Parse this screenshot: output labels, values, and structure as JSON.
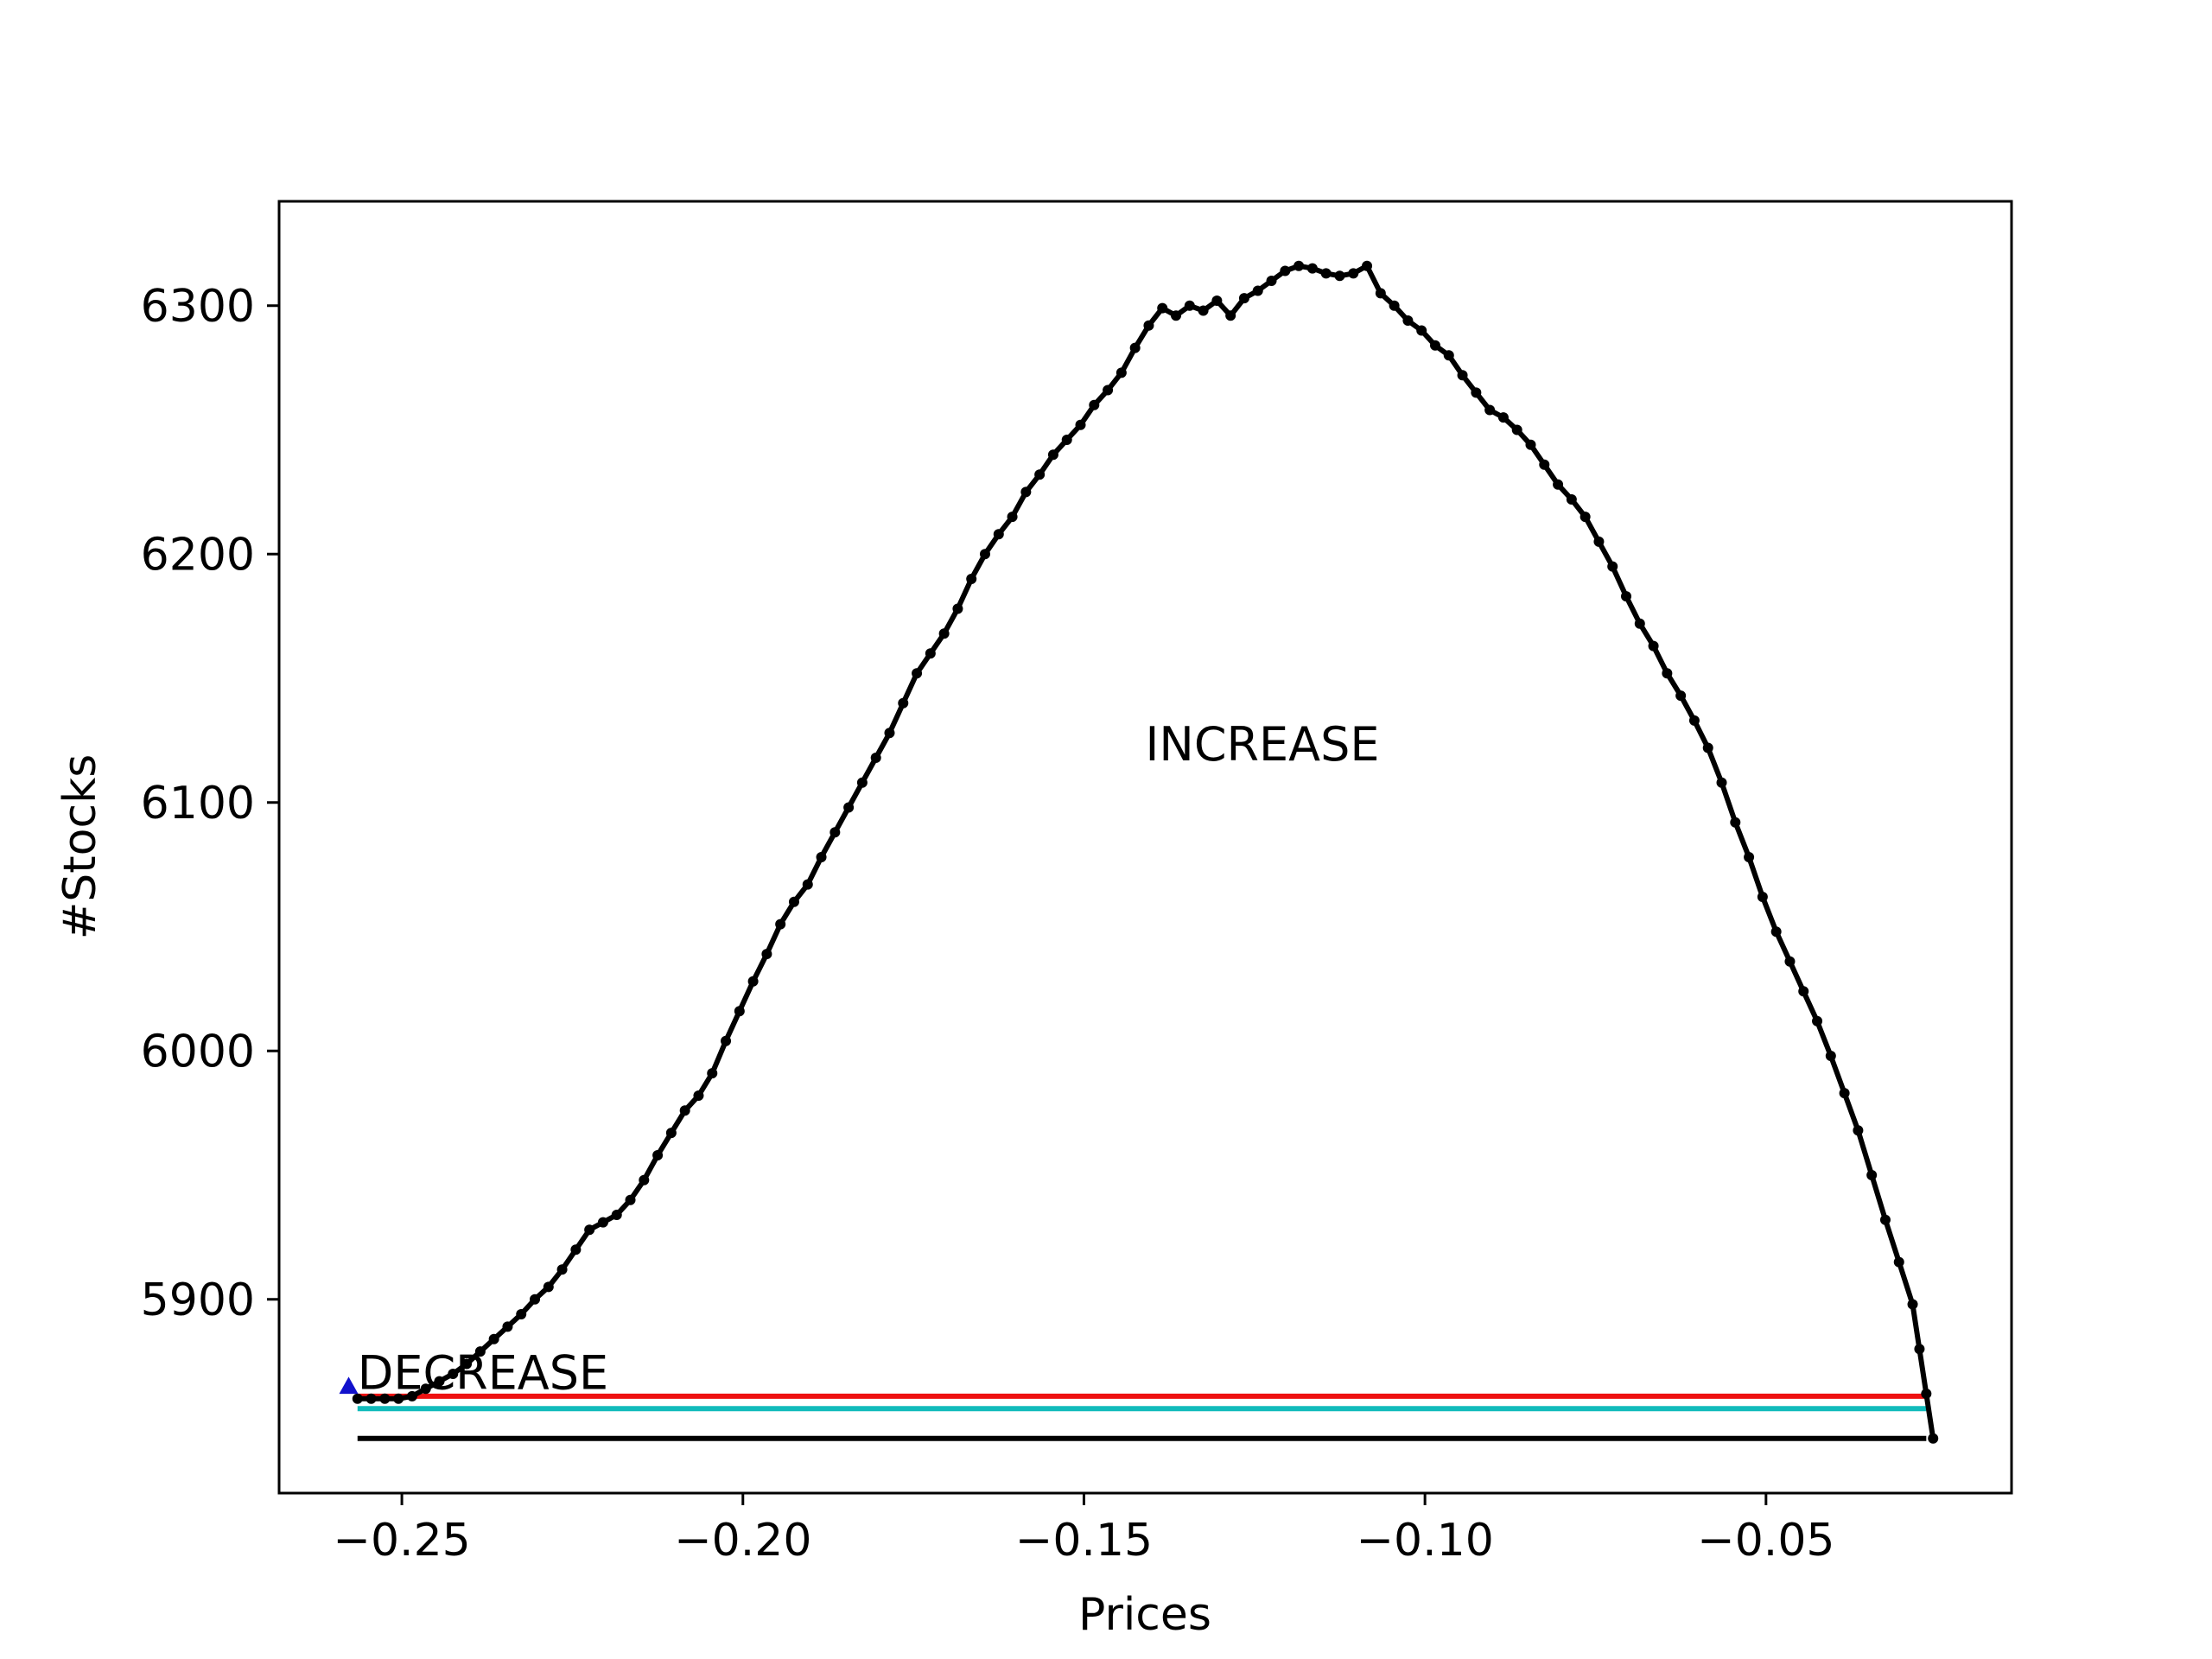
{
  "chart_data": {
    "type": "line",
    "title": "",
    "xlabel": "Prices",
    "ylabel": "#Stocks",
    "xlim": [
      -0.268,
      -0.014
    ],
    "ylim": [
      5822,
      6342
    ],
    "grid": false,
    "legend": "none",
    "xticks": [
      -0.25,
      -0.2,
      -0.15,
      -0.1,
      -0.05
    ],
    "xtick_labels": [
      "−0.25",
      "−0.20",
      "−0.15",
      "−0.10",
      "−0.05"
    ],
    "yticks": [
      5900,
      6000,
      6100,
      6200,
      6300
    ],
    "ytick_labels": [
      "5900",
      "6000",
      "6100",
      "6200",
      "6300"
    ],
    "annotations": [
      {
        "text": "INCREASE",
        "x": -0.141,
        "y": 6117
      },
      {
        "text": "DECREASE",
        "x": -0.2565,
        "y": 5864
      }
    ],
    "reference_lines": [
      {
        "name": "red",
        "y": 5861,
        "x_start": -0.2565,
        "x_end": -0.0265,
        "color": "#ee1111"
      },
      {
        "name": "cyan",
        "y": 5856,
        "x_start": -0.2565,
        "x_end": -0.0265,
        "color": "#11bbbb"
      },
      {
        "name": "black",
        "y": 5844,
        "x_start": -0.2565,
        "x_end": -0.0265,
        "color": "#000000"
      }
    ],
    "markers": [
      {
        "name": "start-triangle",
        "x": -0.2578,
        "y": 5865,
        "color": "#1111cc"
      }
    ],
    "series": [
      {
        "color": "#000000",
        "points": [
          [
            -0.2565,
            5860
          ],
          [
            -0.2545,
            5860
          ],
          [
            -0.2525,
            5860
          ],
          [
            -0.2505,
            5860
          ],
          [
            -0.2485,
            5861
          ],
          [
            -0.2465,
            5864
          ],
          [
            -0.2445,
            5867
          ],
          [
            -0.2425,
            5870
          ],
          [
            -0.2405,
            5874
          ],
          [
            -0.2385,
            5879
          ],
          [
            -0.2365,
            5884
          ],
          [
            -0.2345,
            5889
          ],
          [
            -0.2325,
            5894
          ],
          [
            -0.2305,
            5900
          ],
          [
            -0.2285,
            5905
          ],
          [
            -0.2265,
            5912
          ],
          [
            -0.2245,
            5920
          ],
          [
            -0.2225,
            5928
          ],
          [
            -0.2205,
            5931
          ],
          [
            -0.2185,
            5934
          ],
          [
            -0.2165,
            5940
          ],
          [
            -0.2145,
            5948
          ],
          [
            -0.2125,
            5958
          ],
          [
            -0.2105,
            5967
          ],
          [
            -0.2085,
            5976
          ],
          [
            -0.2065,
            5982
          ],
          [
            -0.2045,
            5991
          ],
          [
            -0.2025,
            6004
          ],
          [
            -0.2005,
            6016
          ],
          [
            -0.1985,
            6028
          ],
          [
            -0.1965,
            6039
          ],
          [
            -0.1945,
            6051
          ],
          [
            -0.1925,
            6060
          ],
          [
            -0.1905,
            6067
          ],
          [
            -0.1885,
            6078
          ],
          [
            -0.1865,
            6088
          ],
          [
            -0.1845,
            6098
          ],
          [
            -0.1825,
            6108
          ],
          [
            -0.1805,
            6118
          ],
          [
            -0.1785,
            6128
          ],
          [
            -0.1765,
            6140
          ],
          [
            -0.1745,
            6152
          ],
          [
            -0.1725,
            6160
          ],
          [
            -0.1705,
            6168
          ],
          [
            -0.1685,
            6178
          ],
          [
            -0.1665,
            6190
          ],
          [
            -0.1645,
            6200
          ],
          [
            -0.1625,
            6208
          ],
          [
            -0.1605,
            6215
          ],
          [
            -0.1585,
            6225
          ],
          [
            -0.1565,
            6232
          ],
          [
            -0.1545,
            6240
          ],
          [
            -0.1525,
            6246
          ],
          [
            -0.1505,
            6252
          ],
          [
            -0.1485,
            6260
          ],
          [
            -0.1465,
            6266
          ],
          [
            -0.1445,
            6273
          ],
          [
            -0.1425,
            6283
          ],
          [
            -0.1405,
            6292
          ],
          [
            -0.1385,
            6299
          ],
          [
            -0.1365,
            6296
          ],
          [
            -0.1345,
            6300
          ],
          [
            -0.1325,
            6298
          ],
          [
            -0.1305,
            6302
          ],
          [
            -0.1285,
            6296
          ],
          [
            -0.1265,
            6303
          ],
          [
            -0.1245,
            6306
          ],
          [
            -0.1225,
            6310
          ],
          [
            -0.1205,
            6314
          ],
          [
            -0.1185,
            6316
          ],
          [
            -0.1165,
            6315
          ],
          [
            -0.1145,
            6313
          ],
          [
            -0.1125,
            6312
          ],
          [
            -0.1105,
            6313
          ],
          [
            -0.1085,
            6316
          ],
          [
            -0.1065,
            6305
          ],
          [
            -0.1045,
            6300
          ],
          [
            -0.1025,
            6294
          ],
          [
            -0.1005,
            6290
          ],
          [
            -0.0985,
            6284
          ],
          [
            -0.0965,
            6280
          ],
          [
            -0.0945,
            6272
          ],
          [
            -0.0925,
            6265
          ],
          [
            -0.0905,
            6258
          ],
          [
            -0.0885,
            6255
          ],
          [
            -0.0865,
            6250
          ],
          [
            -0.0845,
            6244
          ],
          [
            -0.0825,
            6236
          ],
          [
            -0.0805,
            6228
          ],
          [
            -0.0785,
            6222
          ],
          [
            -0.0765,
            6215
          ],
          [
            -0.0745,
            6205
          ],
          [
            -0.0725,
            6195
          ],
          [
            -0.0705,
            6183
          ],
          [
            -0.0685,
            6172
          ],
          [
            -0.0665,
            6163
          ],
          [
            -0.0645,
            6152
          ],
          [
            -0.0625,
            6143
          ],
          [
            -0.0605,
            6133
          ],
          [
            -0.0585,
            6122
          ],
          [
            -0.0565,
            6108
          ],
          [
            -0.0545,
            6092
          ],
          [
            -0.0525,
            6078
          ],
          [
            -0.0505,
            6062
          ],
          [
            -0.0485,
            6048
          ],
          [
            -0.0465,
            6036
          ],
          [
            -0.0445,
            6024
          ],
          [
            -0.0425,
            6012
          ],
          [
            -0.0405,
            5998
          ],
          [
            -0.0385,
            5983
          ],
          [
            -0.0365,
            5968
          ],
          [
            -0.0345,
            5950
          ],
          [
            -0.0325,
            5932
          ],
          [
            -0.0305,
            5915
          ],
          [
            -0.0285,
            5898
          ],
          [
            -0.0275,
            5880
          ],
          [
            -0.0265,
            5862
          ],
          [
            -0.0255,
            5844
          ]
        ]
      }
    ]
  }
}
